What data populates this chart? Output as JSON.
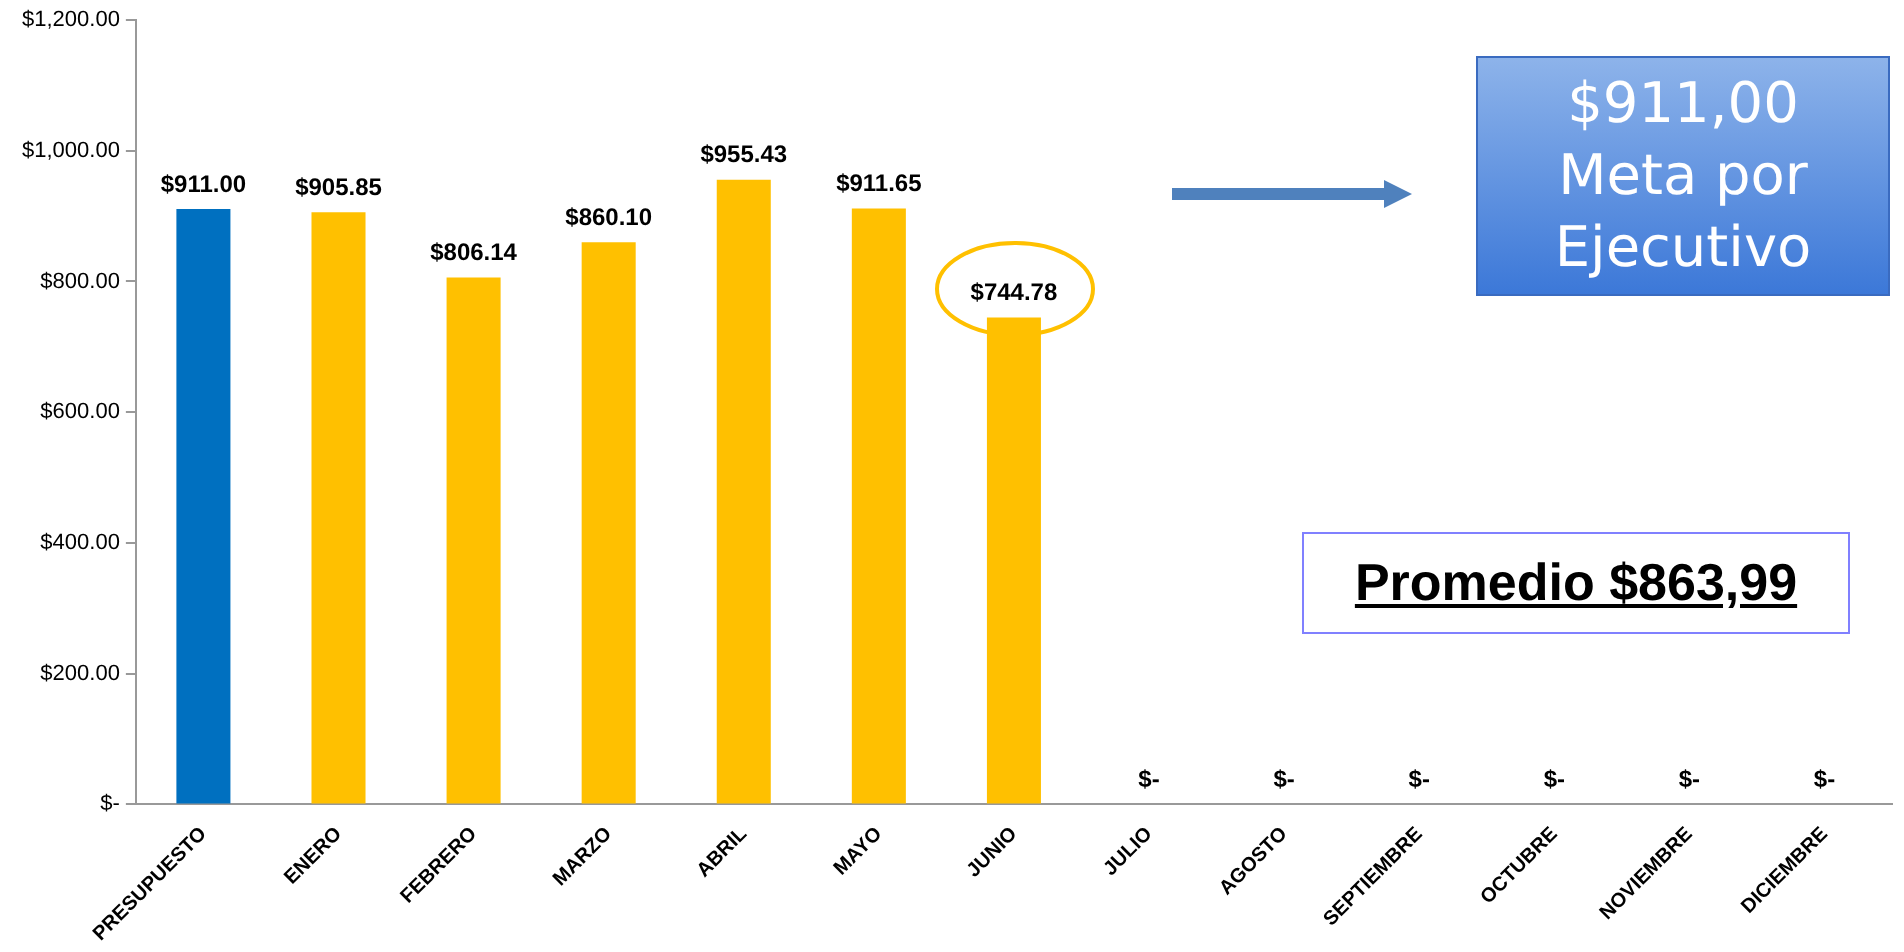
{
  "chart_data": {
    "type": "bar",
    "categories": [
      "PRESUPUESTO",
      "ENERO",
      "FEBRERO",
      "MARZO",
      "ABRIL",
      "MAYO",
      "JUNIO",
      "JULIO",
      "AGOSTO",
      "SEPTIEMBRE",
      "OCTUBRE",
      "NOVIEMBRE",
      "DICIEMBRE"
    ],
    "values": [
      911,
      905.85,
      806.14,
      860.1,
      955.43,
      911.65,
      744.78,
      0,
      0,
      0,
      0,
      0,
      0
    ],
    "colors": [
      "#0070c0",
      "#ffc000",
      "#ffc000",
      "#ffc000",
      "#ffc000",
      "#ffc000",
      "#ffc000",
      "#ffc000",
      "#ffc000",
      "#ffc000",
      "#ffc000",
      "#ffc000",
      "#ffc000"
    ],
    "value_labels": [
      "$911.00",
      "$905.85",
      "$806.14",
      "$860.10",
      "$955.43",
      "$911.65",
      "$744.78",
      "$-",
      "$-",
      "$-",
      "$-",
      "$-",
      "$-"
    ],
    "ylim": [
      0,
      1200
    ],
    "yticks": [
      {
        "value": 0,
        "label": "$-"
      },
      {
        "value": 200,
        "label": "$200.00"
      },
      {
        "value": 400,
        "label": "$400.00"
      },
      {
        "value": 600,
        "label": "$600.00"
      },
      {
        "value": 800,
        "label": "$800.00"
      },
      {
        "value": 1000,
        "label": "$1,000.00"
      },
      {
        "value": 1200,
        "label": "$1,200.00"
      }
    ],
    "annotations": [
      "$911,00 Meta por Ejecutivo",
      "Promedio $863,99"
    ],
    "grid": false,
    "legend": false
  }
}
